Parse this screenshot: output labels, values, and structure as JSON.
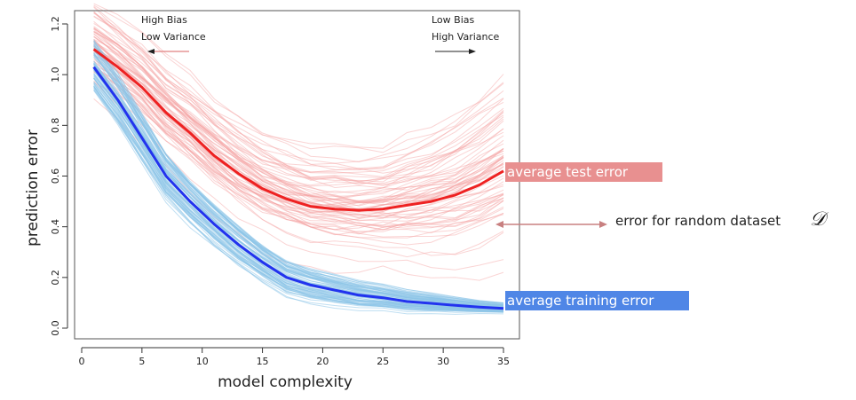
{
  "chart_data": {
    "type": "line",
    "xlabel": "model complexity",
    "ylabel": "prediction error",
    "xlim": [
      0,
      36
    ],
    "ylim": [
      0,
      1.25
    ],
    "x_ticks": [
      "0",
      "5",
      "10",
      "15",
      "20",
      "25",
      "30",
      "35"
    ],
    "y_ticks": [
      "0.0",
      "0.2",
      "0.4",
      "0.6",
      "0.8",
      "1.0",
      "1.2"
    ],
    "x": [
      1,
      3,
      5,
      7,
      9,
      11,
      13,
      15,
      17,
      19,
      21,
      23,
      25,
      27,
      29,
      31,
      33,
      35
    ],
    "series": [
      {
        "name": "average test error",
        "color": "#ee2222",
        "values": [
          1.1,
          1.03,
          0.95,
          0.85,
          0.77,
          0.68,
          0.61,
          0.55,
          0.51,
          0.48,
          0.47,
          0.465,
          0.47,
          0.485,
          0.5,
          0.525,
          0.565,
          0.62
        ]
      },
      {
        "name": "average training error",
        "color": "#2233ee",
        "values": [
          1.03,
          0.9,
          0.75,
          0.6,
          0.5,
          0.41,
          0.33,
          0.26,
          0.2,
          0.17,
          0.15,
          0.13,
          0.12,
          0.105,
          0.098,
          0.09,
          0.083,
          0.078
        ]
      }
    ],
    "annotations": {
      "left_line1": "High Bias",
      "left_line2": "Low Variance",
      "right_line1": "Low Bias",
      "right_line2": "High Variance",
      "random_dataset_label": "error for random dataset",
      "random_dataset_symbol": "𝒟"
    },
    "colors": {
      "test_band": "#e89090",
      "train_band": "#4f86e6",
      "test_thin": "#f4a0a0",
      "train_thin": "#8cc4e8",
      "dataset_arrow": "#c88080"
    }
  }
}
